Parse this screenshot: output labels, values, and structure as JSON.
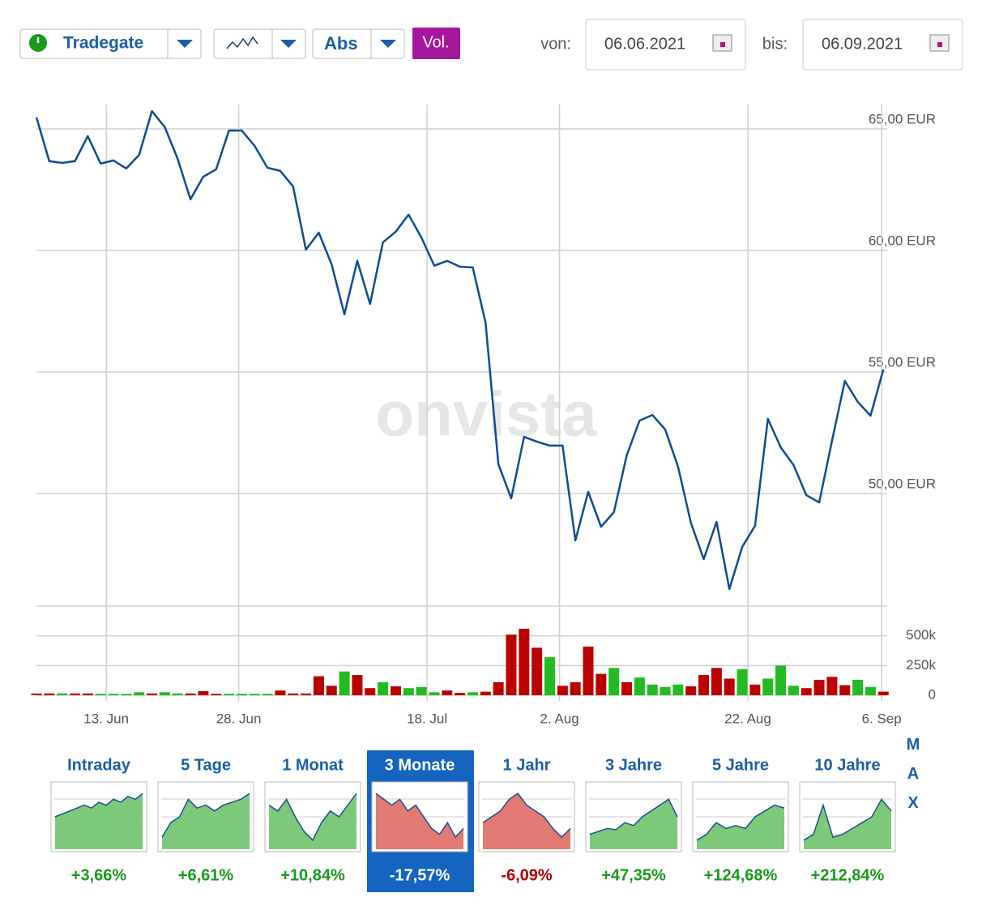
{
  "toolbar": {
    "exchange": "Tradegate",
    "mode": "Abs",
    "volume_button": "Vol.",
    "from_label": "von:",
    "from_date": "06.06.2021",
    "to_label": "bis:",
    "to_date": "06.09.2021"
  },
  "watermark": "onvista",
  "chart_data": [
    {
      "type": "line",
      "x": [
        0,
        1,
        2,
        3,
        4,
        5,
        6,
        7,
        8,
        9,
        10,
        11,
        12,
        13,
        14,
        15,
        16,
        17,
        18,
        19,
        20,
        21,
        22,
        23,
        24,
        25,
        26,
        27,
        28,
        29,
        30,
        31,
        32,
        33,
        34,
        35,
        36,
        37,
        38,
        39,
        40,
        41,
        42,
        43,
        44,
        45,
        46,
        47,
        48,
        49,
        50,
        51,
        52,
        53,
        54,
        55,
        56,
        57,
        58,
        59,
        60,
        61,
        62,
        63,
        64,
        65,
        66
      ],
      "series": [
        {
          "name": "Kurs",
          "color": "#0f4c91",
          "values": [
            65.47,
            63.67,
            63.6,
            63.67,
            64.7,
            63.57,
            63.7,
            63.37,
            63.93,
            65.73,
            65.07,
            63.77,
            62.1,
            63.03,
            63.33,
            64.93,
            64.93,
            64.3,
            63.4,
            63.27,
            62.63,
            60.03,
            60.73,
            59.43,
            57.37,
            59.57,
            57.8,
            60.33,
            60.77,
            61.47,
            60.53,
            59.37,
            59.57,
            59.33,
            59.3,
            57.03,
            51.2,
            49.8,
            52.33,
            52.13,
            51.97,
            51.97,
            48.07,
            50.07,
            48.63,
            49.23,
            51.57,
            53.0,
            53.23,
            52.63,
            51.1,
            48.8,
            47.3,
            48.83,
            46.07,
            47.8,
            48.67,
            53.07,
            51.9,
            51.17,
            49.93,
            49.63,
            52.17,
            54.63,
            53.77,
            53.2,
            55.1
          ]
        }
      ],
      "xlim": [
        0,
        66.3
      ],
      "ylim": [
        45.6,
        66.0
      ],
      "yticks": [
        {
          "value": 65,
          "label": "65,00 EUR"
        },
        {
          "value": 60,
          "label": "60,00 EUR"
        },
        {
          "value": 55,
          "label": "55,00 EUR"
        },
        {
          "value": 50,
          "label": "50,00 EUR"
        }
      ],
      "xticks": [
        {
          "value": 5.44,
          "label": "13. Jun"
        },
        {
          "value": 15.76,
          "label": "28. Jun"
        },
        {
          "value": 30.44,
          "label": "18. Jul"
        },
        {
          "value": 40.76,
          "label": "2. Aug"
        },
        {
          "value": 55.44,
          "label": "22. Aug"
        },
        {
          "value": 65.87,
          "label": "6. Sep"
        }
      ],
      "grid": true
    },
    {
      "type": "bar",
      "x": [
        0,
        1,
        2,
        3,
        4,
        5,
        6,
        7,
        8,
        9,
        10,
        11,
        12,
        13,
        14,
        15,
        16,
        17,
        18,
        19,
        20,
        21,
        22,
        23,
        24,
        25,
        26,
        27,
        28,
        29,
        30,
        31,
        32,
        33,
        34,
        35,
        36,
        37,
        38,
        39,
        40,
        41,
        42,
        43,
        44,
        45,
        46,
        47,
        48,
        49,
        50,
        51,
        52,
        53,
        54,
        55,
        56,
        57,
        58,
        59,
        60,
        61,
        62,
        63,
        64,
        65,
        66
      ],
      "values": [
        15000,
        15000,
        15000,
        15000,
        15000,
        12000,
        12000,
        12000,
        25000,
        15000,
        25000,
        15000,
        15000,
        35000,
        12000,
        12000,
        12000,
        12000,
        12000,
        40000,
        15000,
        15000,
        160000,
        80000,
        200000,
        170000,
        60000,
        110000,
        75000,
        60000,
        70000,
        25000,
        40000,
        20000,
        25000,
        30000,
        110000,
        510000,
        560000,
        400000,
        320000,
        80000,
        110000,
        410000,
        180000,
        230000,
        110000,
        150000,
        90000,
        70000,
        90000,
        75000,
        170000,
        230000,
        140000,
        220000,
        90000,
        140000,
        250000,
        80000,
        60000,
        130000,
        155000,
        85000,
        130000,
        70000,
        30000
      ],
      "colors": [
        "#b00",
        "#b00",
        "#2b2",
        "#b00",
        "#b00",
        "#2b2",
        "#2b2",
        "#2b2",
        "#2b2",
        "#b00",
        "#2b2",
        "#2b2",
        "#b00",
        "#b00",
        "#b00",
        "#2b2",
        "#2b2",
        "#2b2",
        "#2b2",
        "#b00",
        "#b00",
        "#b00",
        "#b00",
        "#b00",
        "#2b2",
        "#b00",
        "#b00",
        "#2b2",
        "#b00",
        "#2b2",
        "#2b2",
        "#2b2",
        "#b00",
        "#b00",
        "#2b2",
        "#b00",
        "#b00",
        "#b00",
        "#b00",
        "#b00",
        "#2b2",
        "#b00",
        "#b00",
        "#b00",
        "#b00",
        "#2b2",
        "#b00",
        "#2b2",
        "#2b2",
        "#2b2",
        "#2b2",
        "#b00",
        "#b00",
        "#b00",
        "#b00",
        "#2b2",
        "#b00",
        "#2b2",
        "#2b2",
        "#2b2",
        "#b00",
        "#b00",
        "#b00",
        "#b00",
        "#2b2",
        "#2b2",
        "#b00"
      ],
      "xlim": [
        0,
        66.3
      ],
      "ylim": [
        0,
        750000
      ],
      "yticks": [
        {
          "value": 500000,
          "label": "500k"
        },
        {
          "value": 250000,
          "label": "250k"
        },
        0
      ]
    }
  ],
  "periods": {
    "selected": "3 Monate",
    "max_label": "MAX",
    "items": [
      {
        "label": "Intraday",
        "change": "+3,66%"
      },
      {
        "label": "5 Tage",
        "change": "+6,61%"
      },
      {
        "label": "1 Monat",
        "change": "+10,84%"
      },
      {
        "label": "3 Monate",
        "change": "-17,57%"
      },
      {
        "label": "1 Jahr",
        "change": "-6,09%"
      },
      {
        "label": "3 Jahre",
        "change": "+47,35%"
      },
      {
        "label": "5 Jahre",
        "change": "+124,68%"
      },
      {
        "label": "10 Jahre",
        "change": "+212,84%"
      }
    ]
  }
}
